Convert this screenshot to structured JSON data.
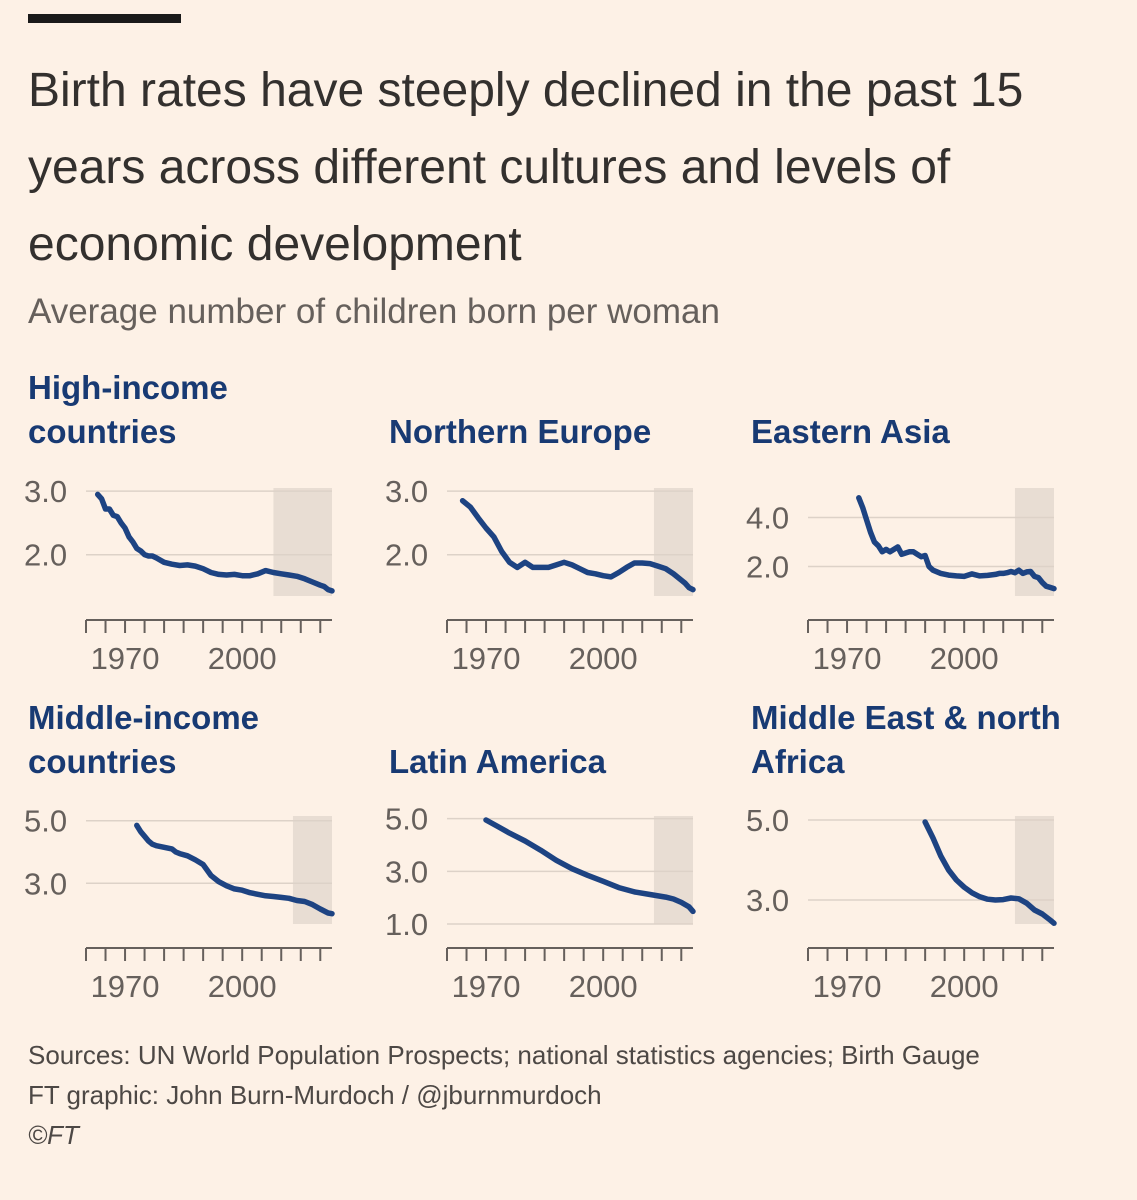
{
  "title": "Birth rates have steeply declined in the past 15 years across different cultures and levels of economic development",
  "subtitle": "Average number of children born per woman",
  "sources": "Sources: UN World Population Prospects; national statistics agencies; Birth Gauge",
  "credit": "FT graphic: John Burn-Murdoch / @jburnmurdoch",
  "copyright": "©FT",
  "colors": {
    "line": "#1d4382",
    "title": "#183a73",
    "shade": "#e8ddd3",
    "background": "#fdf1e6"
  },
  "chart_data": [
    {
      "type": "line",
      "title": "High-income countries",
      "xlim": [
        1960,
        2023
      ],
      "x_ticks": [
        1970,
        2000
      ],
      "ylim": [
        1.35,
        3.05
      ],
      "y_ticks": [
        3.0,
        2.0
      ],
      "y_tick_labels": [
        "3.0",
        "2.0"
      ],
      "highlight": [
        2008,
        2023
      ],
      "x": [
        1963,
        1964,
        1965,
        1966,
        1967,
        1968,
        1969,
        1970,
        1971,
        1972,
        1973,
        1974,
        1975,
        1976,
        1977,
        1978,
        1980,
        1982,
        1984,
        1986,
        1988,
        1990,
        1992,
        1994,
        1996,
        1998,
        2000,
        2002,
        2004,
        2006,
        2008,
        2010,
        2012,
        2014,
        2016,
        2018,
        2020,
        2021,
        2022,
        2023
      ],
      "y": [
        2.95,
        2.88,
        2.72,
        2.72,
        2.62,
        2.6,
        2.5,
        2.42,
        2.28,
        2.2,
        2.1,
        2.06,
        2.0,
        1.98,
        1.98,
        1.95,
        1.88,
        1.85,
        1.83,
        1.84,
        1.82,
        1.78,
        1.72,
        1.69,
        1.68,
        1.69,
        1.67,
        1.67,
        1.7,
        1.75,
        1.72,
        1.7,
        1.68,
        1.66,
        1.62,
        1.57,
        1.52,
        1.5,
        1.45,
        1.43
      ]
    },
    {
      "type": "line",
      "title": "Northern Europe",
      "xlim": [
        1960,
        2023
      ],
      "x_ticks": [
        1970,
        2000
      ],
      "ylim": [
        1.35,
        3.05
      ],
      "y_ticks": [
        3.0,
        2.0
      ],
      "y_tick_labels": [
        "3.0",
        "2.0"
      ],
      "highlight": [
        2013,
        2023
      ],
      "x": [
        1964,
        1966,
        1968,
        1970,
        1972,
        1974,
        1976,
        1978,
        1980,
        1982,
        1984,
        1986,
        1988,
        1990,
        1992,
        1994,
        1996,
        1998,
        2000,
        2002,
        2004,
        2006,
        2008,
        2010,
        2012,
        2014,
        2016,
        2018,
        2020,
        2021,
        2022,
        2023
      ],
      "y": [
        2.85,
        2.75,
        2.58,
        2.42,
        2.28,
        2.05,
        1.88,
        1.8,
        1.88,
        1.8,
        1.8,
        1.8,
        1.84,
        1.88,
        1.84,
        1.78,
        1.72,
        1.7,
        1.67,
        1.65,
        1.72,
        1.8,
        1.87,
        1.87,
        1.86,
        1.82,
        1.78,
        1.7,
        1.6,
        1.55,
        1.48,
        1.45
      ]
    },
    {
      "type": "line",
      "title": "Eastern Asia",
      "xlim": [
        1960,
        2023
      ],
      "x_ticks": [
        1970,
        2000
      ],
      "ylim": [
        0.8,
        5.2
      ],
      "y_ticks": [
        4.0,
        2.0
      ],
      "y_tick_labels": [
        "4.0",
        "2.0"
      ],
      "highlight": [
        2013,
        2023
      ],
      "x": [
        1973,
        1974,
        1975,
        1976,
        1977,
        1978,
        1979,
        1980,
        1981,
        1982,
        1983,
        1984,
        1985,
        1986,
        1987,
        1988,
        1989,
        1990,
        1991,
        1992,
        1994,
        1996,
        1998,
        2000,
        2002,
        2004,
        2006,
        2008,
        2009,
        2010,
        2011,
        2012,
        2013,
        2014,
        2015,
        2016,
        2017,
        2018,
        2019,
        2020,
        2021,
        2022,
        2023
      ],
      "y": [
        4.8,
        4.4,
        3.9,
        3.4,
        3.0,
        2.85,
        2.6,
        2.7,
        2.6,
        2.7,
        2.8,
        2.5,
        2.55,
        2.6,
        2.6,
        2.5,
        2.4,
        2.45,
        2.0,
        1.85,
        1.72,
        1.65,
        1.62,
        1.6,
        1.7,
        1.62,
        1.64,
        1.68,
        1.72,
        1.72,
        1.75,
        1.8,
        1.75,
        1.85,
        1.72,
        1.78,
        1.8,
        1.6,
        1.55,
        1.35,
        1.2,
        1.15,
        1.1
      ]
    },
    {
      "type": "line",
      "title": "Middle-income countries",
      "xlim": [
        1960,
        2023
      ],
      "x_ticks": [
        1970,
        2000
      ],
      "ylim": [
        1.7,
        5.15
      ],
      "y_ticks": [
        5.0,
        3.0
      ],
      "y_tick_labels": [
        "5.0",
        "3.0"
      ],
      "highlight": [
        2013,
        2023
      ],
      "x": [
        1973,
        1974,
        1975,
        1976,
        1977,
        1978,
        1980,
        1982,
        1983,
        1984,
        1986,
        1988,
        1990,
        1992,
        1994,
        1996,
        1998,
        2000,
        2002,
        2004,
        2006,
        2008,
        2010,
        2012,
        2014,
        2016,
        2018,
        2020,
        2022,
        2023
      ],
      "y": [
        4.85,
        4.65,
        4.5,
        4.35,
        4.25,
        4.2,
        4.15,
        4.1,
        4.0,
        3.95,
        3.88,
        3.75,
        3.6,
        3.25,
        3.05,
        2.92,
        2.82,
        2.78,
        2.7,
        2.65,
        2.6,
        2.58,
        2.55,
        2.52,
        2.45,
        2.42,
        2.32,
        2.18,
        2.05,
        2.03
      ]
    },
    {
      "type": "line",
      "title": "Latin America",
      "xlim": [
        1960,
        2023
      ],
      "x_ticks": [
        1970,
        2000
      ],
      "ylim": [
        1.0,
        5.1
      ],
      "y_ticks": [
        5.0,
        3.0,
        1.0
      ],
      "y_tick_labels": [
        "5.0",
        "3.0",
        "1.0"
      ],
      "highlight": [
        2013,
        2023
      ],
      "x": [
        1970,
        1973,
        1976,
        1980,
        1984,
        1988,
        1992,
        1996,
        2000,
        2004,
        2008,
        2012,
        2016,
        2018,
        2020,
        2022,
        2023
      ],
      "y": [
        4.95,
        4.7,
        4.45,
        4.15,
        3.8,
        3.42,
        3.1,
        2.85,
        2.62,
        2.38,
        2.22,
        2.12,
        2.02,
        1.95,
        1.82,
        1.65,
        1.48
      ]
    },
    {
      "type": "line",
      "title": "Middle East & north Africa",
      "xlim": [
        1960,
        2023
      ],
      "x_ticks": [
        1970,
        2000
      ],
      "ylim": [
        2.4,
        5.1
      ],
      "y_ticks": [
        5.0,
        3.0
      ],
      "y_tick_labels": [
        "5.0",
        "3.0"
      ],
      "highlight": [
        2013,
        2023
      ],
      "x": [
        1990,
        1992,
        1994,
        1996,
        1998,
        2000,
        2002,
        2004,
        2006,
        2008,
        2010,
        2012,
        2014,
        2016,
        2018,
        2020,
        2022,
        2023
      ],
      "y": [
        4.95,
        4.55,
        4.1,
        3.75,
        3.5,
        3.32,
        3.18,
        3.08,
        3.02,
        3.0,
        3.01,
        3.05,
        3.03,
        2.92,
        2.75,
        2.65,
        2.5,
        2.42
      ]
    }
  ]
}
